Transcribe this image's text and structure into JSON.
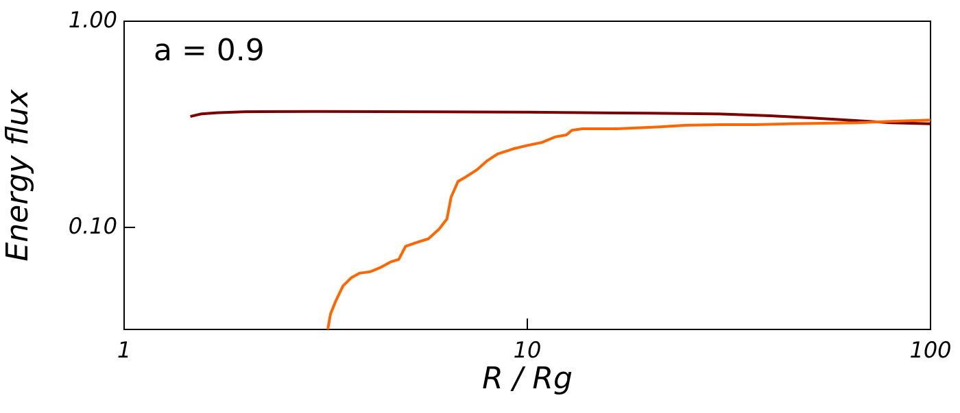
{
  "chart_data": {
    "type": "line",
    "xlabel": "R / Rg",
    "ylabel": "Energy flux",
    "annotation": "a = 0.9",
    "xscale": "log",
    "yscale": "log",
    "xlim": [
      1,
      100
    ],
    "ylim": [
      0.032,
      1
    ],
    "xticks": [
      1,
      10,
      100
    ],
    "yticks": [
      {
        "value": 0.1,
        "label": "0.10"
      },
      {
        "value": 1,
        "label": "1.00"
      }
    ],
    "series": [
      {
        "color": "#7b0000",
        "x": [
          1.46,
          1.55,
          1.7,
          2,
          3,
          5,
          10,
          20,
          30,
          40,
          50,
          60,
          70,
          80,
          100
        ],
        "values": [
          0.345,
          0.355,
          0.36,
          0.364,
          0.365,
          0.364,
          0.362,
          0.358,
          0.355,
          0.348,
          0.34,
          0.333,
          0.327,
          0.322,
          0.318
        ]
      },
      {
        "color": "#ff6600",
        "x": [
          3.2,
          3.25,
          3.35,
          3.49,
          3.66,
          3.84,
          4.08,
          4.33,
          4.58,
          4.8,
          4.99,
          5.36,
          5.68,
          6.04,
          6.32,
          6.47,
          6.73,
          7.05,
          7.49,
          7.94,
          8.43,
          9.27,
          10.03,
          10.85,
          11.74,
          12.5,
          12.9,
          13.7,
          16.7,
          21.1,
          24.7,
          30,
          36.6,
          44.5,
          54.2,
          65.8,
          80,
          100
        ],
        "values": [
          0.032,
          0.038,
          0.044,
          0.052,
          0.057,
          0.06,
          0.061,
          0.064,
          0.068,
          0.07,
          0.081,
          0.085,
          0.088,
          0.098,
          0.11,
          0.14,
          0.167,
          0.176,
          0.19,
          0.21,
          0.227,
          0.241,
          0.25,
          0.258,
          0.275,
          0.281,
          0.296,
          0.301,
          0.301,
          0.307,
          0.313,
          0.315,
          0.315,
          0.318,
          0.32,
          0.322,
          0.327,
          0.332
        ]
      }
    ]
  }
}
